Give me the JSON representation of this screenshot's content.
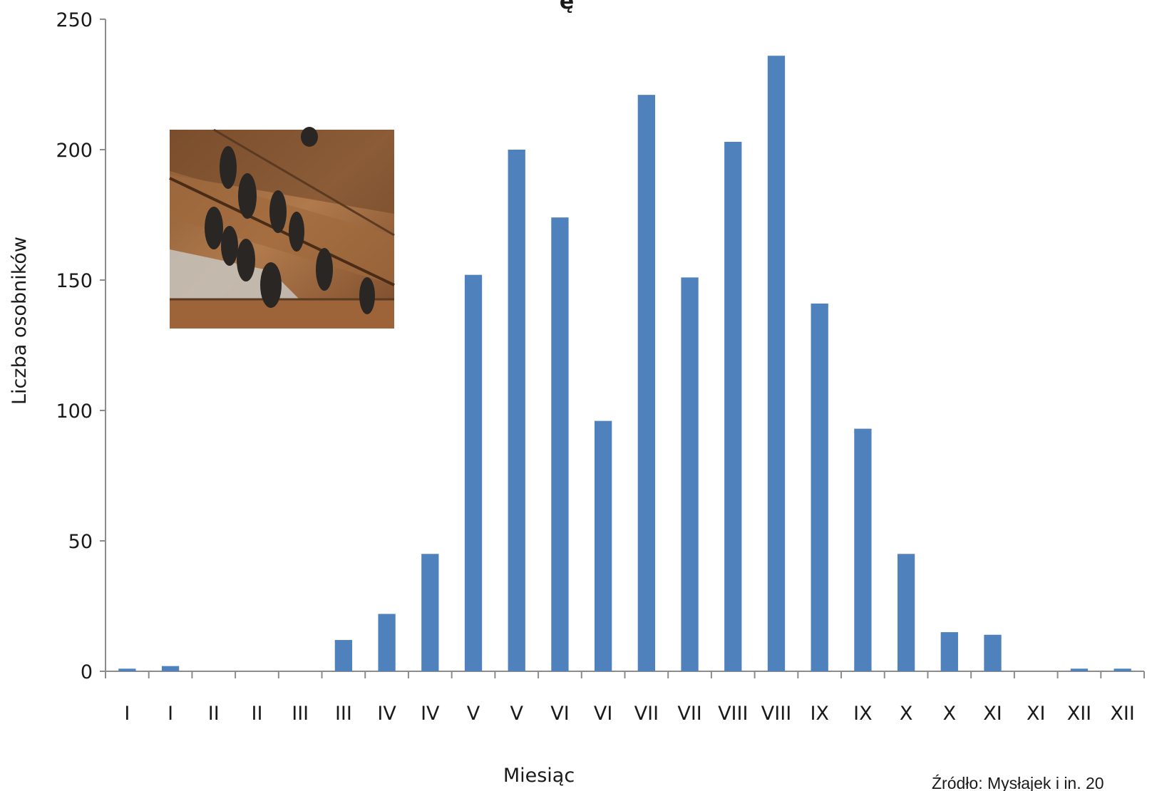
{
  "chart_data": {
    "type": "bar",
    "title": "ę",
    "xlabel": "Miesiąc",
    "ylabel": "Liczba osobników",
    "ylim": [
      0,
      250
    ],
    "yticks": [
      0,
      50,
      100,
      150,
      200,
      250
    ],
    "categories": [
      "I",
      "I",
      "II",
      "II",
      "III",
      "III",
      "IV",
      "IV",
      "V",
      "V",
      "VI",
      "VI",
      "VII",
      "VII",
      "VIII",
      "VIII",
      "IX",
      "IX",
      "X",
      "X",
      "XI",
      "XI",
      "XII",
      "XII"
    ],
    "values": [
      1,
      2,
      0,
      0,
      0,
      12,
      22,
      45,
      152,
      200,
      174,
      96,
      221,
      151,
      203,
      236,
      141,
      93,
      45,
      15,
      14,
      0,
      1,
      1
    ],
    "bar_color": "#4f81bd",
    "grid": false,
    "source": "Źródło: Mysłajek i in. 20"
  },
  "inset_image": {
    "description_icon": "bats-roosting-photo-icon"
  }
}
